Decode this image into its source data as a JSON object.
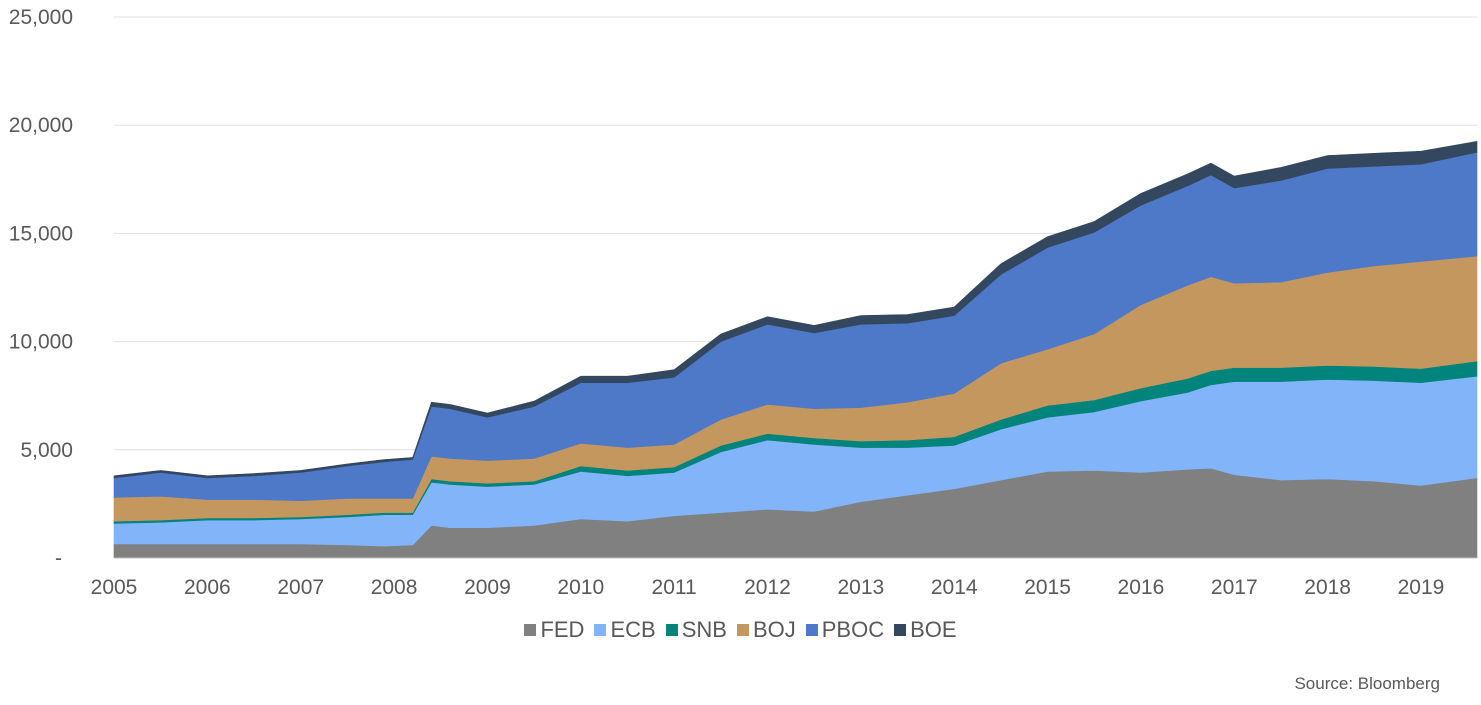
{
  "chart_data": {
    "type": "area",
    "stacked": true,
    "y_tick_labels": [
      "-",
      "5,000",
      "10,000",
      "15,000",
      "20,000",
      "25,000"
    ],
    "y_ticks": [
      0,
      5000,
      10000,
      15000,
      20000,
      25000
    ],
    "ylim": [
      0,
      25000
    ],
    "x_tick_labels": [
      "2005",
      "2006",
      "2007",
      "2008",
      "2009",
      "2010",
      "2011",
      "2012",
      "2013",
      "2014",
      "2015",
      "2016",
      "2017",
      "2018",
      "2019"
    ],
    "xlim": [
      2005.0,
      2019.6
    ],
    "grid": true,
    "legend_position": "bottom",
    "source": "Source: Bloomberg",
    "x": [
      2005.0,
      2005.5,
      2006.0,
      2006.5,
      2007.0,
      2007.5,
      2007.9,
      2008.2,
      2008.4,
      2008.6,
      2009.0,
      2009.5,
      2010.0,
      2010.5,
      2011.0,
      2011.5,
      2012.0,
      2012.5,
      2013.0,
      2013.5,
      2014.0,
      2014.5,
      2015.0,
      2015.5,
      2016.0,
      2016.5,
      2016.75,
      2017.0,
      2017.5,
      2018.0,
      2018.5,
      2019.0,
      2019.6
    ],
    "series": [
      {
        "name": "FED",
        "color": "#808080",
        "values": [
          650,
          650,
          650,
          650,
          650,
          600,
          550,
          600,
          1500,
          1400,
          1400,
          1500,
          1800,
          1700,
          1950,
          2100,
          2250,
          2150,
          2600,
          2900,
          3200,
          3600,
          4000,
          4050,
          3950,
          4100,
          4150,
          3850,
          3600,
          3650,
          3550,
          3350,
          3700
        ]
      },
      {
        "name": "ECB",
        "color": "#82b4f9",
        "values": [
          950,
          1000,
          1100,
          1100,
          1150,
          1300,
          1450,
          1400,
          2000,
          2000,
          1900,
          1900,
          2200,
          2100,
          2000,
          2800,
          3200,
          3100,
          2500,
          2200,
          2000,
          2350,
          2500,
          2700,
          3300,
          3550,
          3850,
          4300,
          4550,
          4600,
          4650,
          4750,
          4700
        ]
      },
      {
        "name": "SNB",
        "color": "#00847b",
        "values": [
          100,
          100,
          100,
          100,
          100,
          100,
          100,
          100,
          150,
          150,
          150,
          150,
          250,
          250,
          250,
          300,
          300,
          300,
          300,
          350,
          400,
          450,
          550,
          550,
          600,
          650,
          650,
          650,
          650,
          650,
          650,
          650,
          700
        ]
      },
      {
        "name": "BOJ",
        "color": "#c4975e",
        "values": [
          1100,
          1100,
          850,
          850,
          750,
          750,
          650,
          650,
          1050,
          1050,
          1050,
          1050,
          1050,
          1050,
          1050,
          1200,
          1350,
          1350,
          1550,
          1750,
          2000,
          2600,
          2600,
          3050,
          3850,
          4300,
          4350,
          3900,
          3950,
          4300,
          4650,
          4950,
          4850
        ]
      },
      {
        "name": "PBOC",
        "color": "#4e78c8",
        "values": [
          900,
          1100,
          1000,
          1100,
          1300,
          1500,
          1700,
          1800,
          2300,
          2300,
          2000,
          2400,
          2800,
          3000,
          3100,
          3600,
          3700,
          3500,
          3850,
          3650,
          3600,
          4100,
          4700,
          4700,
          4600,
          4600,
          4700,
          4400,
          4700,
          4800,
          4600,
          4500,
          4800
        ]
      },
      {
        "name": "BOE",
        "color": "#33475f",
        "values": [
          100,
          100,
          100,
          100,
          100,
          100,
          100,
          100,
          200,
          200,
          200,
          250,
          300,
          300,
          350,
          350,
          350,
          350,
          400,
          400,
          400,
          500,
          500,
          500,
          550,
          550,
          550,
          550,
          600,
          600,
          600,
          600,
          500
        ]
      }
    ]
  }
}
